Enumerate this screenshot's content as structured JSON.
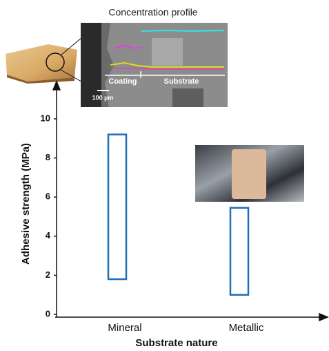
{
  "chart_data": {
    "type": "floating-bar",
    "inset_title": "Concentration profile",
    "inset_labels": [
      "Coating",
      "Substrate"
    ],
    "scale_bar_label": "100 µm",
    "y_label": "Adhesive strength (MPa)",
    "x_label": "Substrate nature",
    "categories": [
      "Mineral",
      "Metallic"
    ],
    "low": [
      1.8,
      1.0
    ],
    "high": [
      9.2,
      5.45
    ],
    "color": "#1f6fb5",
    "ylim": [
      0,
      11.7
    ],
    "yticks": [
      0,
      2,
      4,
      6,
      8,
      10
    ]
  }
}
